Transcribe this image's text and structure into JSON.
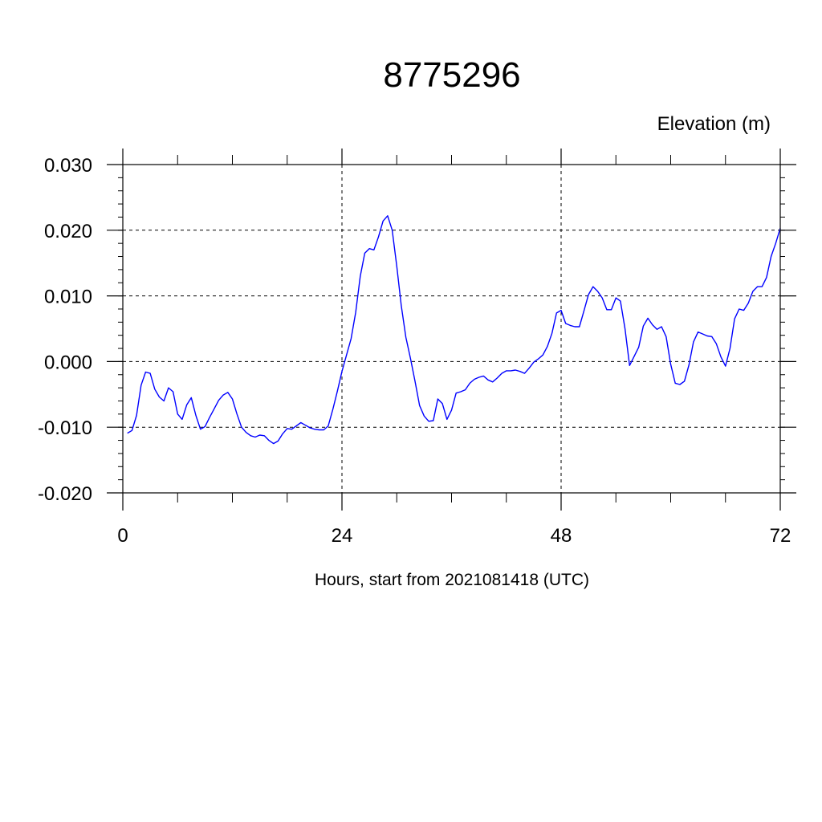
{
  "chart_data": {
    "type": "line",
    "title": "8775296",
    "subtitle": "Elevation (m)",
    "xlabel": "Hours, start from 2021081418 (UTC)",
    "ylabel": "",
    "xlim": [
      0,
      72
    ],
    "ylim": [
      -0.02,
      0.03
    ],
    "xticks": [
      0,
      24,
      48,
      72
    ],
    "xtick_labels": [
      "0",
      "24",
      "48",
      "72"
    ],
    "yticks": [
      -0.02,
      -0.01,
      0.0,
      0.01,
      0.02,
      0.03
    ],
    "ytick_labels": [
      "-0.020",
      "-0.010",
      "0.000",
      "0.010",
      "0.020",
      "0.030"
    ],
    "grid": true,
    "line_color": "#0000ff",
    "series": [
      {
        "x": [
          0.5,
          1,
          1.5,
          2,
          2.5,
          3,
          3.5,
          4,
          4.5,
          5,
          5.5,
          6,
          6.5,
          7,
          7.5,
          8,
          8.5,
          9,
          9.5,
          10,
          10.5,
          11,
          11.5,
          12,
          12.5,
          13,
          13.5,
          14,
          14.5,
          15,
          15.5,
          16,
          16.5,
          17,
          17.5,
          18,
          18.5,
          19,
          19.5,
          20,
          20.5,
          21,
          21.5,
          22,
          22.5,
          23,
          23.5,
          24,
          24.5,
          25,
          25.5,
          26,
          26.5,
          27,
          27.5,
          28,
          28.5,
          29,
          29.5,
          30,
          30.5,
          31,
          31.5,
          32,
          32.5,
          33,
          33.5,
          34,
          34.5,
          35,
          35.5,
          36,
          36.5,
          37,
          37.5,
          38,
          38.5,
          39,
          39.5,
          40,
          40.5,
          41,
          41.5,
          42,
          42.5,
          43,
          43.5,
          44,
          44.5,
          45,
          45.5,
          46,
          46.5,
          47,
          47.5,
          48,
          48.5,
          49,
          49.5,
          50,
          50.5,
          51,
          51.5,
          52,
          52.5,
          53,
          53.5,
          54,
          54.5,
          55,
          55.5,
          56,
          56.5,
          57,
          57.5,
          58,
          58.5,
          59,
          59.5,
          60,
          60.5,
          61,
          61.5,
          62,
          62.5,
          63,
          63.5,
          64,
          64.5,
          65,
          65.5,
          66,
          66.5,
          67,
          67.5,
          68,
          68.5,
          69,
          69.5,
          70,
          70.5,
          71,
          71.5,
          72
        ],
        "y": [
          -0.0109,
          -0.0105,
          -0.0082,
          -0.0036,
          -0.0016,
          -0.0018,
          -0.0042,
          -0.0054,
          -0.006,
          -0.004,
          -0.0046,
          -0.008,
          -0.0088,
          -0.0066,
          -0.0055,
          -0.0082,
          -0.0103,
          -0.0099,
          -0.0085,
          -0.0072,
          -0.0059,
          -0.0051,
          -0.0047,
          -0.0057,
          -0.008,
          -0.01,
          -0.0108,
          -0.0113,
          -0.0115,
          -0.0112,
          -0.0113,
          -0.012,
          -0.0125,
          -0.0121,
          -0.011,
          -0.0102,
          -0.0103,
          -0.0098,
          -0.0093,
          -0.0097,
          -0.0101,
          -0.0103,
          -0.0104,
          -0.0104,
          -0.0098,
          -0.0073,
          -0.0045,
          -0.0015,
          0.001,
          0.0035,
          0.0075,
          0.013,
          0.0165,
          0.0172,
          0.017,
          0.019,
          0.0214,
          0.0222,
          0.02,
          0.0145,
          0.0085,
          0.0037,
          0.0005,
          -0.003,
          -0.0067,
          -0.0083,
          -0.0091,
          -0.009,
          -0.0057,
          -0.0064,
          -0.0088,
          -0.0074,
          -0.0048,
          -0.0046,
          -0.0043,
          -0.0033,
          -0.0027,
          -0.0024,
          -0.0022,
          -0.0028,
          -0.0031,
          -0.0025,
          -0.0018,
          -0.0014,
          -0.0014,
          -0.0013,
          -0.0015,
          -0.0018,
          -0.001,
          -0.0001,
          0.0004,
          0.001,
          0.0023,
          0.0043,
          0.0074,
          0.0078,
          0.0058,
          0.0055,
          0.0053,
          0.0053,
          0.0077,
          0.0102,
          0.0114,
          0.0107,
          0.0097,
          0.0079,
          0.0079,
          0.0097,
          0.0092,
          0.005,
          -0.0006,
          0.0008,
          0.0022,
          0.0054,
          0.0066,
          0.0056,
          0.0049,
          0.0053,
          0.0038,
          -0.0004,
          -0.0033,
          -0.0035,
          -0.003,
          -0.0005,
          0.003,
          0.0045,
          0.0042,
          0.0039,
          0.0038,
          0.0027,
          0.0007,
          -0.0007,
          0.002,
          0.0065,
          0.008,
          0.0078,
          0.0089,
          0.0107,
          0.0114,
          0.0114,
          0.0128,
          0.016,
          0.018,
          0.0203
        ]
      }
    ]
  }
}
